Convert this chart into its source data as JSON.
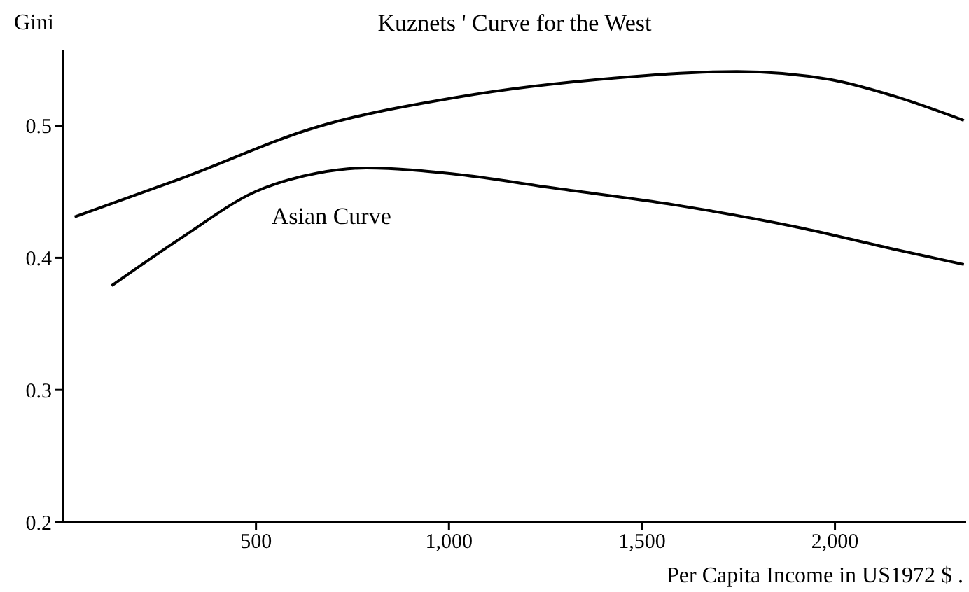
{
  "chart_data": {
    "type": "line",
    "xlabel": "Per Capita Income in US1972 $ .",
    "ylabel": "Gini",
    "xlim": [
      0,
      2340
    ],
    "ylim": [
      0.2,
      0.557
    ],
    "xticks": [
      500,
      {
        "value": 1000,
        "label": "1,000"
      },
      {
        "value": 1500,
        "label": "1,500"
      },
      {
        "value": 2000,
        "label": "2,000"
      }
    ],
    "yticks": [
      0.2,
      0.3,
      0.4,
      0.5
    ],
    "grid": false,
    "legend": false,
    "marker": "none",
    "line_style": "solid",
    "series": [
      {
        "name": "Kuznets ' Curve for the West",
        "color": "#000000",
        "x": [
          30,
          306,
          658,
          1010,
          1426,
          1746,
          1986,
          2146,
          2334
        ],
        "values": [
          0.431,
          0.46,
          0.499,
          0.521,
          0.536,
          0.541,
          0.535,
          0.523,
          0.504
        ]
      },
      {
        "name": "Asian Curve",
        "color": "#000000",
        "x": [
          126,
          306,
          498,
          658,
          786,
          1026,
          1266,
          1586,
          1906,
          2146,
          2334
        ],
        "values": [
          0.379,
          0.415,
          0.45,
          0.464,
          0.468,
          0.463,
          0.453,
          0.44,
          0.423,
          0.407,
          0.395
        ]
      }
    ]
  }
}
